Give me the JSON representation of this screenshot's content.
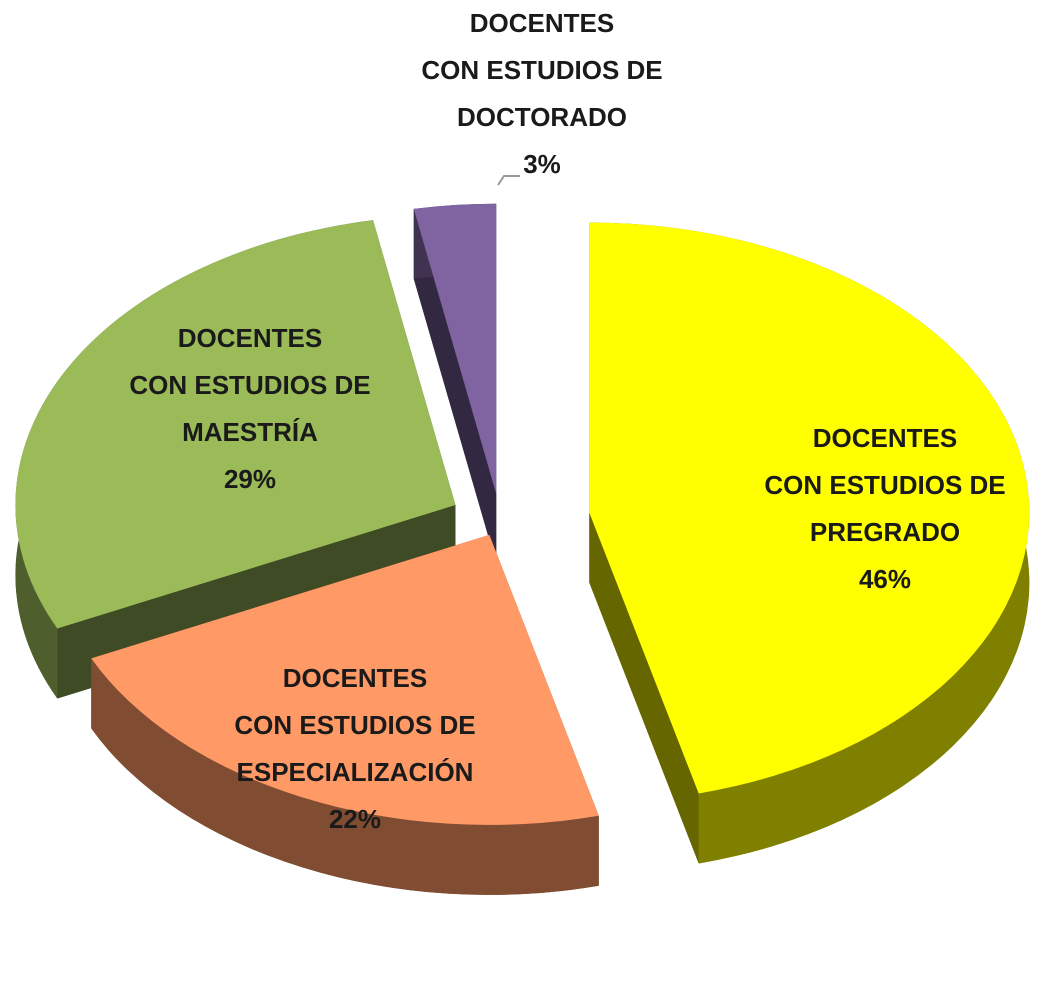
{
  "chart_data": {
    "type": "pie",
    "categories": [
      "DOCENTES\nCON ESTUDIOS DE\nPREGRADO",
      "DOCENTES\nCON ESTUDIOS DE\nESPECIALIZACIÓN",
      "DOCENTES\nCON ESTUDIOS DE\nMAESTRÍA",
      "DOCENTES\nCON ESTUDIOS DE\nDOCTORADO"
    ],
    "values": [
      46,
      22,
      29,
      3
    ],
    "value_labels": [
      "46%",
      "22%",
      "29%",
      "3%"
    ],
    "colors": [
      "#ffff00",
      "#ff9966",
      "#9bbb59",
      "#8064a2"
    ]
  }
}
